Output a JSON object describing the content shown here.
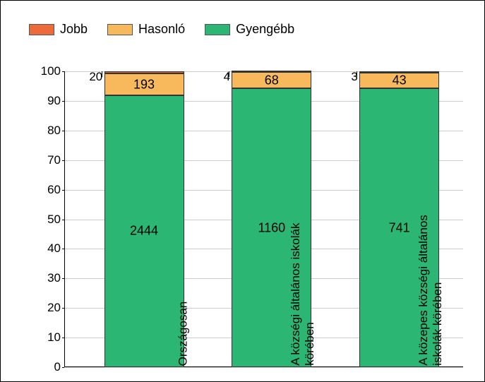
{
  "chart": {
    "type": "stacked-bar-percent",
    "background_color": "#ffffff",
    "grid_color": "#cccccc",
    "axis_color": "#000000",
    "font_family": "Arial",
    "label_fontsize": 18,
    "tick_fontsize": 17,
    "ylim": [
      0,
      100
    ],
    "ytick_step": 10,
    "yticks": [
      0,
      10,
      20,
      30,
      40,
      50,
      60,
      70,
      80,
      90,
      100
    ],
    "bar_width_pct": 20,
    "legend": [
      {
        "label": "Jobb",
        "color": "#ed6b3a"
      },
      {
        "label": "Hasonló",
        "color": "#f7b95c"
      },
      {
        "label": "Gyengébb",
        "color": "#2bb673"
      }
    ],
    "categories": [
      {
        "name": "Országosan",
        "label_lines": [
          "Országosan"
        ],
        "left_pct": 10,
        "segments": [
          {
            "series": "Gyengébb",
            "raw": 2444,
            "pct": 91.9,
            "color": "#2bb673",
            "label_pos_pct": 46
          },
          {
            "series": "Hasonló",
            "raw": 193,
            "pct": 7.3,
            "color": "#f7b95c",
            "label_pos_pct": 95.5
          },
          {
            "series": "Jobb",
            "raw": 20,
            "pct": 0.8,
            "color": "#ed6b3a"
          }
        ],
        "top_value": 20
      },
      {
        "name": "A községi általános iskolák körében",
        "label_lines": [
          "A községi általános iskolák",
          "körében"
        ],
        "left_pct": 42,
        "segments": [
          {
            "series": "Gyengébb",
            "raw": 1160,
            "pct": 94.2,
            "color": "#2bb673",
            "label_pos_pct": 47
          },
          {
            "series": "Hasonló",
            "raw": 68,
            "pct": 5.5,
            "color": "#f7b95c",
            "label_pos_pct": 97
          },
          {
            "series": "Jobb",
            "raw": 4,
            "pct": 0.3,
            "color": "#ed6b3a"
          }
        ],
        "top_value": 4
      },
      {
        "name": "A közepes községi általános iskolák körében",
        "label_lines": [
          "A közepes községi általános",
          "iskolák körében"
        ],
        "left_pct": 74,
        "segments": [
          {
            "series": "Gyengébb",
            "raw": 741,
            "pct": 94.2,
            "color": "#2bb673",
            "label_pos_pct": 47
          },
          {
            "series": "Hasonló",
            "raw": 43,
            "pct": 5.4,
            "color": "#f7b95c",
            "label_pos_pct": 97
          },
          {
            "series": "Jobb",
            "raw": 3,
            "pct": 0.4,
            "color": "#ed6b3a"
          }
        ],
        "top_value": 3
      }
    ]
  }
}
